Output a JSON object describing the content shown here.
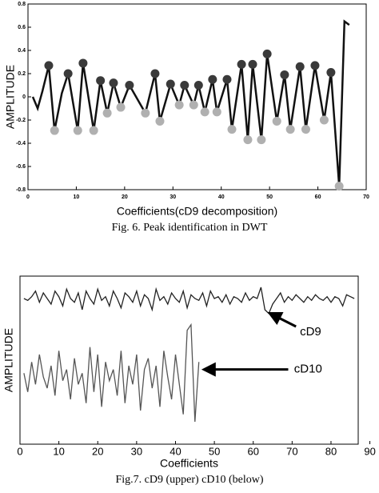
{
  "chart_data": [
    {
      "type": "line",
      "ylabel": "AMPLITUDE",
      "xlabel": "Coefficients(cD9 decomposition)",
      "caption": "Fig. 6. Peak identification in DWT",
      "xlim": [
        0,
        70
      ],
      "ylim": [
        -0.8,
        0.8
      ],
      "xticks": [
        0,
        10,
        20,
        30,
        40,
        50,
        60,
        70
      ],
      "yticks": [
        -0.8,
        -0.6,
        -0.4,
        -0.2,
        0,
        0.2,
        0.4,
        0.6,
        0.8
      ],
      "series": [
        {
          "color": "#111111",
          "marker": false,
          "x": [
            1,
            2,
            3,
            4.3,
            5.5,
            7,
            8.3,
            10.3,
            11.4,
            13.6,
            15,
            16.4,
            17.7,
            19.2,
            21,
            24.3,
            26.3,
            27.3,
            29.5,
            31.3,
            32.4,
            34.3,
            35.3,
            36.6,
            38.2,
            39.1,
            41.2,
            42.2,
            44.2,
            45.5,
            46.5,
            48.3,
            49.5,
            51.5,
            53.1,
            54.3,
            56.3,
            57.5,
            59.4,
            61.3,
            62.7,
            64.4,
            65.5,
            66.5
          ],
          "values": [
            0,
            -0.1,
            0.05,
            0.27,
            -0.29,
            0.03,
            0.2,
            -0.29,
            0.29,
            -0.29,
            0.14,
            -0.14,
            0.12,
            -0.09,
            0.1,
            -0.14,
            0.2,
            -0.21,
            0.11,
            -0.07,
            0.1,
            -0.07,
            0.1,
            -0.13,
            0.15,
            -0.13,
            0.15,
            -0.28,
            0.28,
            -0.37,
            0.28,
            -0.37,
            0.37,
            -0.21,
            0.19,
            -0.28,
            0.26,
            -0.28,
            0.27,
            -0.2,
            0.21,
            -0.77,
            0.65,
            0.62
          ]
        },
        {
          "color": "#3a3a3a",
          "marker": true,
          "x": [
            4.3,
            8.3,
            11.4,
            15,
            17.7,
            21,
            26.3,
            29.5,
            32.4,
            35.3,
            38.2,
            41.2,
            44.2,
            46.5,
            49.5,
            53.1,
            56.3,
            59.4,
            62.7
          ],
          "values": [
            0.27,
            0.2,
            0.29,
            0.14,
            0.12,
            0.1,
            0.2,
            0.11,
            0.1,
            0.1,
            0.15,
            0.15,
            0.28,
            0.28,
            0.37,
            0.19,
            0.26,
            0.27,
            0.21
          ]
        },
        {
          "color": "#b0b0b0",
          "marker": true,
          "x": [
            5.5,
            10.3,
            13.6,
            16.4,
            19.2,
            24.3,
            27.3,
            31.3,
            34.3,
            36.6,
            39.1,
            42.2,
            45.5,
            48.3,
            51.5,
            54.3,
            57.5,
            61.3,
            64.4
          ],
          "values": [
            -0.29,
            -0.29,
            -0.29,
            -0.14,
            -0.09,
            -0.14,
            -0.21,
            -0.07,
            -0.07,
            -0.13,
            -0.13,
            -0.28,
            -0.37,
            -0.37,
            -0.21,
            -0.28,
            -0.28,
            -0.2,
            -0.77
          ]
        }
      ]
    },
    {
      "type": "line",
      "ylabel": "AMPLITUDE",
      "xlabel": "Coefficients",
      "caption": "Fig.7. cD9 (upper) cD10 (below)",
      "xlim": [
        0,
        87
      ],
      "ylim": [
        -3,
        1.5
      ],
      "xticks": [
        0,
        10,
        20,
        30,
        40,
        50,
        60,
        70,
        80,
        90
      ],
      "annotations": [
        "cD9",
        "cD10"
      ],
      "series": [
        {
          "name": "cD9",
          "color": "#222222",
          "marker": false,
          "x": [
            1,
            2,
            3,
            4,
            5,
            6,
            7,
            8,
            9,
            10,
            11,
            12,
            13,
            14,
            15,
            16,
            17,
            18,
            19,
            20,
            21,
            22,
            23,
            24,
            25,
            26,
            27,
            28,
            29,
            30,
            31,
            32,
            33,
            34,
            35,
            36,
            37,
            38,
            39,
            40,
            41,
            42,
            43,
            44,
            45,
            46,
            47,
            48,
            49,
            50,
            51,
            52,
            53,
            54,
            55,
            56,
            57,
            58,
            59,
            60,
            61,
            62,
            63,
            64,
            65,
            66,
            67,
            68,
            69,
            70,
            71,
            72,
            73,
            74,
            75,
            76,
            77,
            78,
            79,
            80,
            81,
            82,
            83,
            84,
            85,
            86
          ],
          "values": [
            0.9,
            0.85,
            0.95,
            1.1,
            0.8,
            1.05,
            0.9,
            0.75,
            1.1,
            0.95,
            0.7,
            1.15,
            0.9,
            0.8,
            1.05,
            0.6,
            1.1,
            0.9,
            0.75,
            1.15,
            0.85,
            0.95,
            0.7,
            1.1,
            0.9,
            0.65,
            1.05,
            0.95,
            0.8,
            1.1,
            0.7,
            1.0,
            0.9,
            0.6,
            1.15,
            0.85,
            0.95,
            0.75,
            1.05,
            0.9,
            0.8,
            1.1,
            0.65,
            1.0,
            0.9,
            0.85,
            1.05,
            0.7,
            1.1,
            0.9,
            0.95,
            0.8,
            1.0,
            0.75,
            0.95,
            0.9,
            0.8,
            1.05,
            0.85,
            0.95,
            0.9,
            1.2,
            0.6,
            0.5,
            0.75,
            0.9,
            1.05,
            0.8,
            0.95,
            0.85,
            1.0,
            0.9,
            0.8,
            0.95,
            0.85,
            1.0,
            0.9,
            0.85,
            0.95,
            0.8,
            0.95,
            0.9,
            0.7,
            1.0,
            0.95,
            0.9
          ]
        },
        {
          "name": "cD10",
          "color": "#555555",
          "marker": false,
          "x": [
            1,
            2,
            3,
            4,
            5,
            6,
            7,
            8,
            9,
            10,
            11,
            12,
            13,
            14,
            15,
            16,
            17,
            18,
            19,
            20,
            21,
            22,
            23,
            24,
            25,
            26,
            27,
            28,
            29,
            30,
            31,
            32,
            33,
            34,
            35,
            36,
            37,
            38,
            39,
            40,
            41,
            42,
            43,
            44,
            45,
            46
          ],
          "values": [
            -1.1,
            -1.6,
            -0.8,
            -1.4,
            -0.6,
            -1.2,
            -1.5,
            -0.9,
            -1.7,
            -0.5,
            -1.3,
            -1.0,
            -1.8,
            -0.7,
            -1.4,
            -1.1,
            -1.9,
            -0.4,
            -1.6,
            -0.6,
            -2.0,
            -0.8,
            -1.3,
            -1.0,
            -1.7,
            -0.5,
            -1.9,
            -0.9,
            -1.4,
            -0.6,
            -2.1,
            -1.0,
            -0.7,
            -1.5,
            -0.9,
            -2.0,
            -0.5,
            -1.2,
            -1.8,
            -0.6,
            -1.4,
            -2.2,
            0.05,
            0.2,
            -2.4,
            -0.8
          ]
        }
      ]
    }
  ]
}
